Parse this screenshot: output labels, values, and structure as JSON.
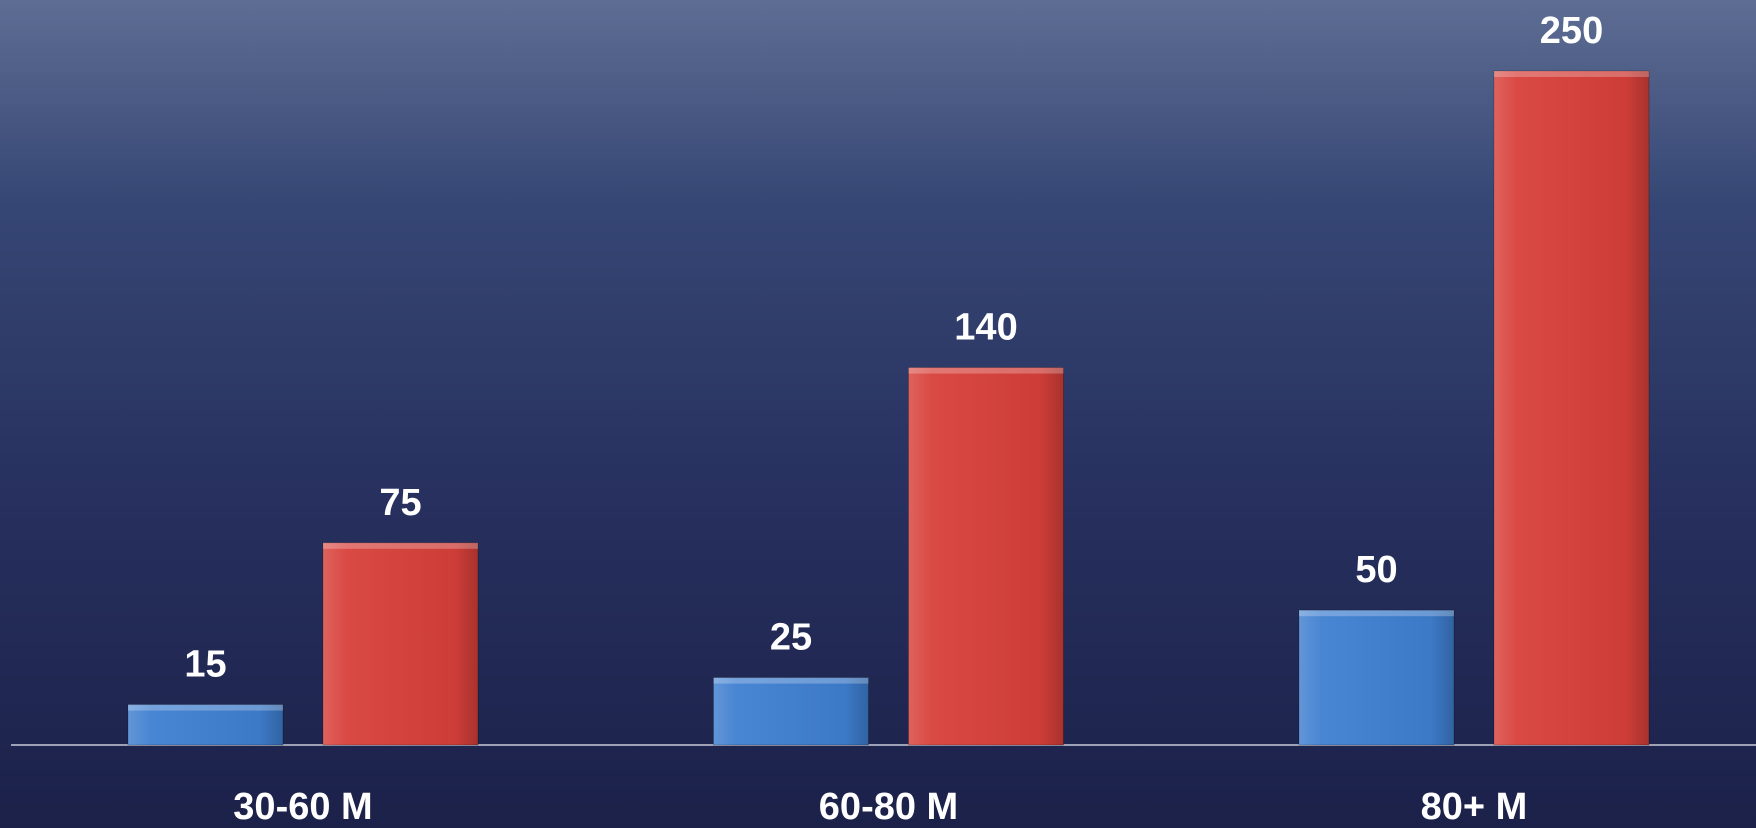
{
  "chart_data": {
    "type": "bar",
    "categories": [
      "30-60 M",
      "60-80 M",
      "80+ M"
    ],
    "series": [
      {
        "color": "#3f7fd0",
        "values": [
          15,
          25,
          50
        ]
      },
      {
        "color": "#d8403a",
        "values": [
          75,
          140,
          250
        ]
      }
    ]
  }
}
